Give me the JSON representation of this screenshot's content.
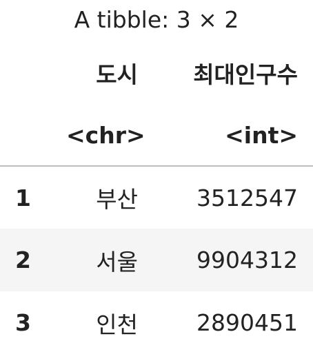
{
  "caption": "A tibble: 3 × 2",
  "columns": [
    {
      "name": "도시",
      "type": "<chr>"
    },
    {
      "name": "최대인구수",
      "type": "<int>"
    }
  ],
  "rows": [
    {
      "index": "1",
      "city": "부산",
      "population": "3512547"
    },
    {
      "index": "2",
      "city": "서울",
      "population": "9904312"
    },
    {
      "index": "3",
      "city": "인천",
      "population": "2890451"
    }
  ]
}
